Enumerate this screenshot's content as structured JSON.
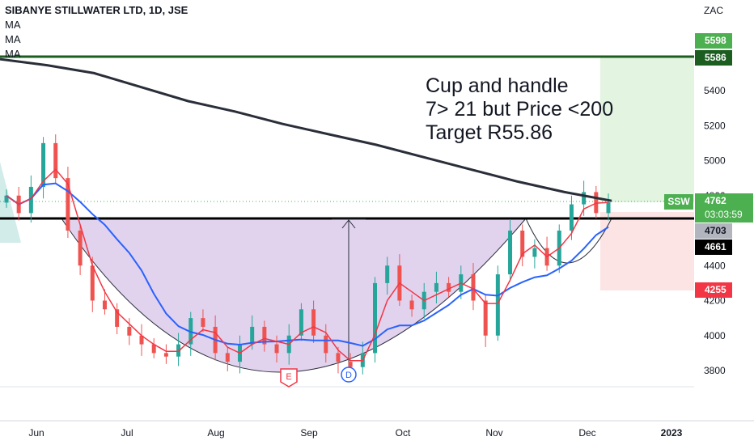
{
  "header": {
    "symbol_line": "SIBANYE STILLWATER LTD, 1D, JSE",
    "indicators": [
      "MA",
      "MA",
      "MA"
    ]
  },
  "annotation": {
    "lines": [
      "Cup and handle",
      "7> 21 but Price <200",
      "Target R55.86"
    ]
  },
  "price_axis": {
    "currency": "ZAC",
    "ticks": [
      "5400",
      "5200",
      "5000",
      "4800",
      "4600",
      "4400",
      "4200",
      "4000",
      "3800"
    ]
  },
  "time_axis": {
    "ticks": [
      "Jun",
      "Jul",
      "Aug",
      "Sep",
      "Oct",
      "Nov",
      "Dec",
      "2023"
    ]
  },
  "price_labels": {
    "target_profit": "5598",
    "target_line": "5586",
    "symbol_tag": "SSW",
    "last_price": "4762",
    "countdown": "03:03:59",
    "neckline": "4703",
    "entry": "4661",
    "stop": "4255"
  },
  "markers": {
    "earnings": "E",
    "dividend": "D"
  },
  "colors": {
    "up": "#26a69a",
    "down": "#ef5350",
    "ma_fast": "#f23645",
    "ma_mid": "#2962ff",
    "ma_slow": "#2a2e39",
    "cup_fill": "#e1d2ee",
    "target_zone": "#e3f4e1",
    "stop_zone": "#fde4e4",
    "target_line": "#1b5e20",
    "profit_label": "#4caf50",
    "stop_label": "#f23645"
  },
  "chart_data": {
    "type": "candlestick",
    "xlabel": "",
    "ylabel": "",
    "ylim": [
      3700,
      5700
    ],
    "levels": {
      "target": 5586,
      "neckline": 4703,
      "entry": 4661,
      "stop": 4255,
      "profit": 5598,
      "last": 4762
    },
    "ma200": [
      5580,
      5545,
      5500,
      5420,
      5340,
      5280,
      5210,
      5150,
      5090,
      5020,
      4950,
      4880,
      4820,
      4770
    ],
    "closes": [
      4800,
      4700,
      4850,
      5100,
      4900,
      4600,
      4400,
      4200,
      4150,
      4050,
      4000,
      3950,
      3900,
      3880,
      3950,
      4100,
      4050,
      3900,
      3850,
      3950,
      4050,
      3950,
      3900,
      4000,
      4150,
      4000,
      3900,
      3850,
      3820,
      3900,
      4300,
      4400,
      4200,
      4150,
      4250,
      4300,
      4250,
      4350,
      4200,
      4000,
      4350,
      4600,
      4450,
      4500,
      4400,
      4600,
      4750,
      4820,
      4700,
      4762
    ]
  }
}
